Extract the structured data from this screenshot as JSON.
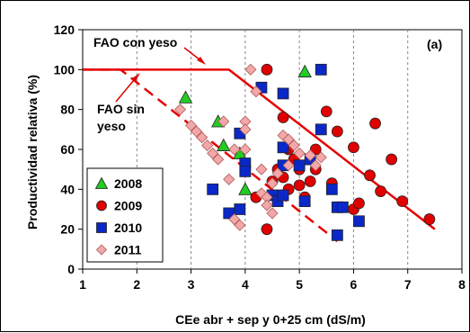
{
  "chart_data": {
    "type": "scatter",
    "panel_label": "(a)",
    "xlabel": "CEe abr + sep y 0+25 cm (dS/m)",
    "ylabel": "Productividad relativa (%)",
    "xlim": [
      1,
      8
    ],
    "ylim": [
      0,
      120
    ],
    "x_ticks": [
      "1",
      "2",
      "3",
      "4",
      "5",
      "6",
      "7",
      "8"
    ],
    "y_ticks": [
      "0",
      "20",
      "40",
      "60",
      "80",
      "100",
      "120"
    ],
    "grid": "vertical dashed",
    "legend_position": "bottom-left",
    "annotations": [
      {
        "text": "FAO con yeso"
      },
      {
        "text": "FAO sin\nyeso"
      }
    ],
    "reference_lines": [
      {
        "name": "FAO con yeso",
        "style": "solid",
        "color": "#e60000",
        "points": [
          [
            1,
            100
          ],
          [
            3.7,
            100
          ],
          [
            7.5,
            20
          ]
        ]
      },
      {
        "name": "FAO sin yeso",
        "style": "dashed",
        "color": "#e60000",
        "points": [
          [
            1,
            100
          ],
          [
            1.7,
            100
          ],
          [
            5.7,
            14
          ]
        ]
      }
    ],
    "series": [
      {
        "name": "2008",
        "marker": "triangle",
        "color": "#22cc22",
        "points": [
          [
            2.9,
            86
          ],
          [
            3.5,
            74
          ],
          [
            3.6,
            62
          ],
          [
            3.9,
            58
          ],
          [
            4.0,
            40
          ],
          [
            5.1,
            99
          ]
        ]
      },
      {
        "name": "2009",
        "marker": "circle",
        "color": "#e00000",
        "points": [
          [
            4.4,
            100
          ],
          [
            4.2,
            36
          ],
          [
            4.4,
            20
          ],
          [
            4.5,
            44
          ],
          [
            4.6,
            50
          ],
          [
            4.7,
            76
          ],
          [
            4.7,
            46
          ],
          [
            4.8,
            60
          ],
          [
            4.8,
            40
          ],
          [
            4.9,
            55
          ],
          [
            5.0,
            50
          ],
          [
            5.0,
            42
          ],
          [
            5.1,
            36
          ],
          [
            5.2,
            44
          ],
          [
            5.3,
            60
          ],
          [
            5.3,
            50
          ],
          [
            5.5,
            79
          ],
          [
            5.6,
            43
          ],
          [
            5.7,
            69
          ],
          [
            5.8,
            31
          ],
          [
            6.0,
            61
          ],
          [
            6.0,
            30
          ],
          [
            6.1,
            33
          ],
          [
            6.3,
            47
          ],
          [
            6.4,
            73
          ],
          [
            6.5,
            39
          ],
          [
            6.7,
            55
          ],
          [
            6.9,
            34
          ],
          [
            7.4,
            25
          ]
        ]
      },
      {
        "name": "2010",
        "marker": "square",
        "color": "#0a28c8",
        "points": [
          [
            3.4,
            40
          ],
          [
            3.7,
            28
          ],
          [
            3.9,
            30
          ],
          [
            3.9,
            68
          ],
          [
            4.0,
            53
          ],
          [
            4.0,
            49
          ],
          [
            4.3,
            91
          ],
          [
            4.5,
            37
          ],
          [
            4.6,
            34
          ],
          [
            4.7,
            88
          ],
          [
            4.7,
            61
          ],
          [
            4.7,
            52
          ],
          [
            4.7,
            37
          ],
          [
            5.0,
            52
          ],
          [
            5.1,
            34
          ],
          [
            5.2,
            55
          ],
          [
            5.4,
            100
          ],
          [
            5.4,
            70
          ],
          [
            5.6,
            40
          ],
          [
            5.7,
            31
          ],
          [
            5.7,
            17
          ],
          [
            5.8,
            31
          ],
          [
            6.1,
            24
          ]
        ]
      },
      {
        "name": "2011",
        "marker": "diamond",
        "color": "#f2a8a8",
        "points": [
          [
            2.8,
            80
          ],
          [
            3.0,
            72
          ],
          [
            3.1,
            69
          ],
          [
            3.2,
            66
          ],
          [
            3.3,
            62
          ],
          [
            3.4,
            58
          ],
          [
            3.5,
            55
          ],
          [
            3.6,
            74
          ],
          [
            3.7,
            45
          ],
          [
            3.8,
            60
          ],
          [
            3.8,
            25
          ],
          [
            3.9,
            22
          ],
          [
            4.0,
            74
          ],
          [
            4.0,
            70
          ],
          [
            4.0,
            60
          ],
          [
            4.1,
            100
          ],
          [
            4.2,
            89
          ],
          [
            4.3,
            50
          ],
          [
            4.3,
            38
          ],
          [
            4.4,
            36
          ],
          [
            4.4,
            32
          ],
          [
            4.5,
            28
          ],
          [
            4.5,
            43
          ],
          [
            4.6,
            48
          ],
          [
            4.7,
            67
          ],
          [
            4.8,
            65
          ],
          [
            4.8,
            52
          ],
          [
            4.9,
            62
          ],
          [
            5.0,
            58
          ],
          [
            5.2,
            57
          ],
          [
            5.3,
            52
          ],
          [
            5.4,
            56
          ]
        ]
      }
    ]
  }
}
